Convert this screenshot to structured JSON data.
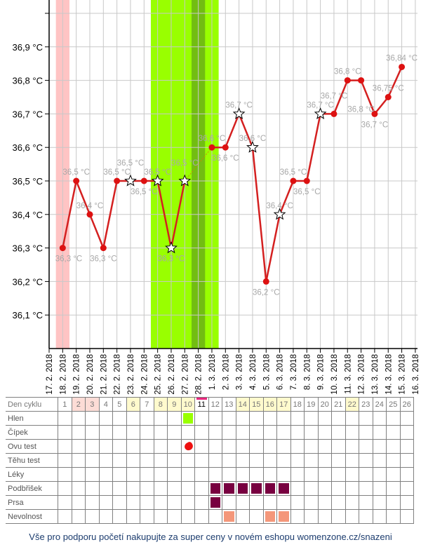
{
  "chart_data": {
    "type": "line",
    "x": [
      "17. 2. 2018",
      "18. 2. 2018",
      "19. 2. 2018",
      "20. 2. 2018",
      "21. 2. 2018",
      "22. 2. 2018",
      "23. 2. 2018",
      "24. 2. 2018",
      "25. 2. 2018",
      "26. 2. 2018",
      "27. 2. 2018",
      "28. 2. 2018",
      "1. 3. 2018",
      "2. 3. 2018",
      "3. 3. 2018",
      "4. 3. 2018",
      "5. 3. 2018",
      "6. 3. 2018",
      "7. 3. 2018",
      "8. 3. 2018",
      "9. 3. 2018",
      "10. 3. 2018",
      "11. 3. 2018",
      "12. 3. 2018",
      "13. 3. 2018",
      "14. 3. 2018",
      "15. 3. 2018",
      "16. 3. 2018"
    ],
    "series": [
      {
        "values": [
          null,
          36.3,
          36.5,
          36.4,
          36.3,
          36.5,
          36.5,
          36.5,
          36.5,
          36.3,
          36.5,
          null,
          36.6,
          36.6,
          36.7,
          36.6,
          36.2,
          36.4,
          36.5,
          36.5,
          36.7,
          36.7,
          36.8,
          36.8,
          36.7,
          36.75,
          36.84,
          null
        ],
        "labels": [
          null,
          "36,3 °C",
          "36,5 °C",
          "36,4 °C",
          "36,3 °C",
          "36,5 °C",
          "36,5 °C",
          "36,5 °C",
          "36,5 °C",
          "36,3 °C",
          "36,5 °C",
          null,
          "36,6 °C",
          "36,6 °C",
          "36,7 °C",
          "36,6 °C",
          "36,2 °C",
          "36,4 °C",
          "36,5 °C",
          "36,5 °C",
          "36,7 °C",
          "36,7 °C",
          "36,8 °C",
          "36,8 °C",
          "36,7 °C",
          "36,75 °C",
          "36,84 °C",
          null
        ],
        "star_markers": [
          false,
          false,
          false,
          false,
          false,
          false,
          true,
          false,
          true,
          true,
          true,
          false,
          false,
          false,
          true,
          true,
          false,
          true,
          false,
          false,
          true,
          false,
          false,
          false,
          false,
          false,
          false,
          false
        ],
        "color": "#d42020"
      }
    ],
    "yticks": [
      "36,1 °C",
      "36,2 °C",
      "36,3 °C",
      "36,4 °C",
      "36,5 °C",
      "36,6 °C",
      "36,7 °C",
      "36,8 °C",
      "36,9 °C"
    ],
    "ylim": [
      36.0,
      37.0
    ],
    "grid": true,
    "bands": [
      {
        "from": "18. 2. 2018",
        "to": "18. 2. 2018",
        "color": "#ffc4c4"
      },
      {
        "from": "25. 2. 2018",
        "to": "1. 3. 2018",
        "color": "#99ff00"
      },
      {
        "from": "28. 2. 2018",
        "to": "28. 2. 2018",
        "color": "#72bd12"
      }
    ]
  },
  "calendar": {
    "header_label": "Den cyklu",
    "days": [
      "1",
      "2",
      "3",
      "4",
      "5",
      "6",
      "7",
      "8",
      "9",
      "10",
      "11",
      "12",
      "13",
      "14",
      "15",
      "16",
      "17",
      "18",
      "19",
      "20",
      "21",
      "22",
      "23",
      "24",
      "25",
      "26"
    ],
    "pink_days": [
      2,
      3
    ],
    "yellow_days": [
      6,
      8,
      9,
      10,
      14,
      15,
      16,
      17,
      22
    ],
    "current_day": 11,
    "colors": {
      "pink": "#fcdcd6",
      "yellow": "#fffacd",
      "today": "#e8267c"
    },
    "rows": [
      {
        "label": "Hlen",
        "marks": [
          10
        ],
        "color": "#99ff00"
      },
      {
        "label": "Čípek",
        "marks": [],
        "color": ""
      },
      {
        "label": "Ovu test",
        "marks": [
          10
        ],
        "color": "#ee1111",
        "icon": "drop-icon"
      },
      {
        "label": "Těhu test",
        "marks": [],
        "color": ""
      },
      {
        "label": "Léky",
        "marks": [],
        "color": ""
      },
      {
        "label": "Podbřišek",
        "marks": [
          12,
          13,
          14,
          15,
          16,
          17
        ],
        "color": "#780040"
      },
      {
        "label": "Prsa",
        "marks": [
          12
        ],
        "color": "#780040"
      },
      {
        "label": "Nevolnost",
        "marks": [
          13,
          16,
          17
        ],
        "color": "#f4977a"
      }
    ]
  },
  "footer": {
    "text": "Vše pro podporu početí nakupujte za super ceny v novém eshopu womenzone.cz/snazeni"
  }
}
